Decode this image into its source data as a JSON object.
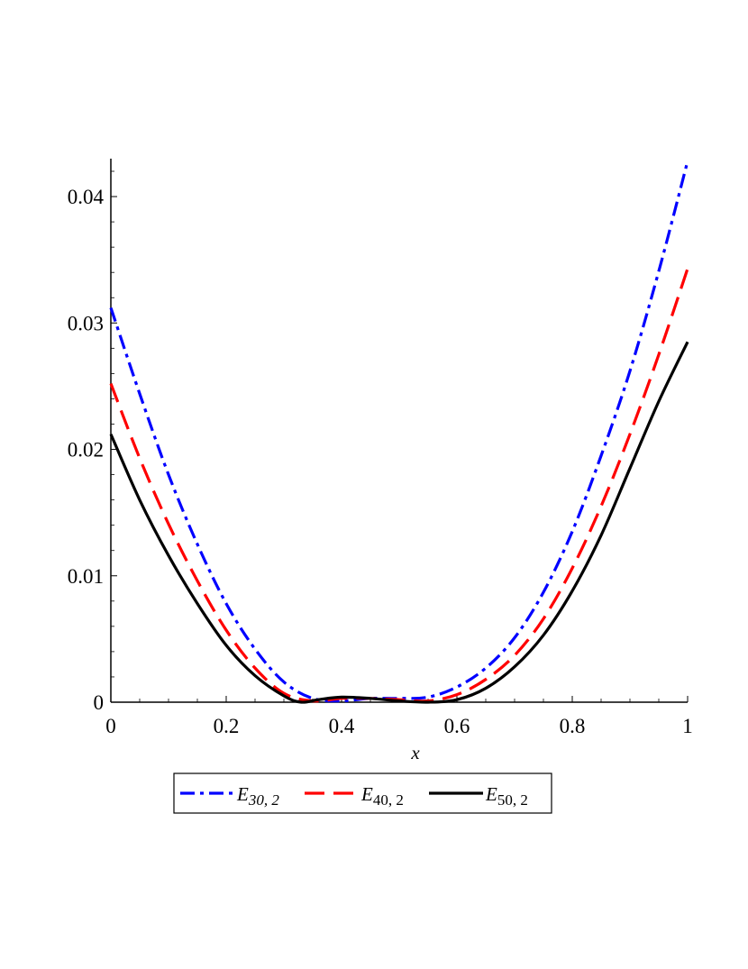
{
  "chart_data": {
    "type": "line",
    "title": "",
    "xlabel": "x",
    "ylabel": "",
    "xlim": [
      0,
      1
    ],
    "ylim": [
      0,
      0.043
    ],
    "xticks": [
      0,
      0.2,
      0.4,
      0.6,
      0.8,
      1
    ],
    "xtick_labels": [
      "0",
      "0.2",
      "0.4",
      "0.6",
      "0.8",
      "1"
    ],
    "yticks": [
      0,
      0.01,
      0.02,
      0.03,
      0.04
    ],
    "ytick_labels": [
      "0",
      "0.01",
      "0.02",
      "0.03",
      "0.04"
    ],
    "grid": false,
    "legend_position": "bottom",
    "series": [
      {
        "name": "E30, 2",
        "legend_main": "E",
        "legend_sub": "30, 2",
        "color": "#0000ff",
        "style": "dash-dot",
        "x": [
          0,
          0.05,
          0.1,
          0.15,
          0.2,
          0.25,
          0.3,
          0.35,
          0.4,
          0.45,
          0.5,
          0.55,
          0.6,
          0.65,
          0.7,
          0.75,
          0.8,
          0.85,
          0.9,
          0.95,
          1
        ],
        "y": [
          0.0312,
          0.0244,
          0.018,
          0.0125,
          0.0078,
          0.0042,
          0.0016,
          0.0003,
          0.0001,
          0.0003,
          0.0003,
          0.0004,
          0.0012,
          0.0027,
          0.0051,
          0.0087,
          0.0135,
          0.0195,
          0.0262,
          0.0341,
          0.0428
        ]
      },
      {
        "name": "E40, 2",
        "legend_main": "E",
        "legend_sub": "40, 2",
        "color": "#ff0000",
        "style": "dash",
        "x": [
          0,
          0.05,
          0.1,
          0.15,
          0.2,
          0.25,
          0.3,
          0.35,
          0.4,
          0.45,
          0.5,
          0.55,
          0.6,
          0.65,
          0.7,
          0.75,
          0.8,
          0.85,
          0.9,
          0.95,
          1
        ],
        "y": [
          0.0252,
          0.0193,
          0.0141,
          0.0096,
          0.0057,
          0.0027,
          0.0007,
          0.0001,
          0.0003,
          0.0003,
          0.0002,
          0.0001,
          0.0006,
          0.0018,
          0.0037,
          0.0066,
          0.0106,
          0.0155,
          0.0212,
          0.0275,
          0.0343
        ]
      },
      {
        "name": "E50, 2",
        "legend_main": "E",
        "legend_sub": "50, 2",
        "color": "#000000",
        "style": "solid",
        "x": [
          0,
          0.05,
          0.1,
          0.15,
          0.2,
          0.25,
          0.3,
          0.33,
          0.36,
          0.4,
          0.45,
          0.5,
          0.55,
          0.6,
          0.65,
          0.7,
          0.75,
          0.8,
          0.85,
          0.9,
          0.95,
          1
        ],
        "y": [
          0.0212,
          0.016,
          0.0116,
          0.0078,
          0.0045,
          0.0021,
          0.0005,
          0.0,
          0.0002,
          0.0004,
          0.0003,
          0.0001,
          0.0,
          0.0002,
          0.0011,
          0.0028,
          0.0053,
          0.0088,
          0.0132,
          0.0185,
          0.0238,
          0.0285
        ]
      }
    ]
  }
}
